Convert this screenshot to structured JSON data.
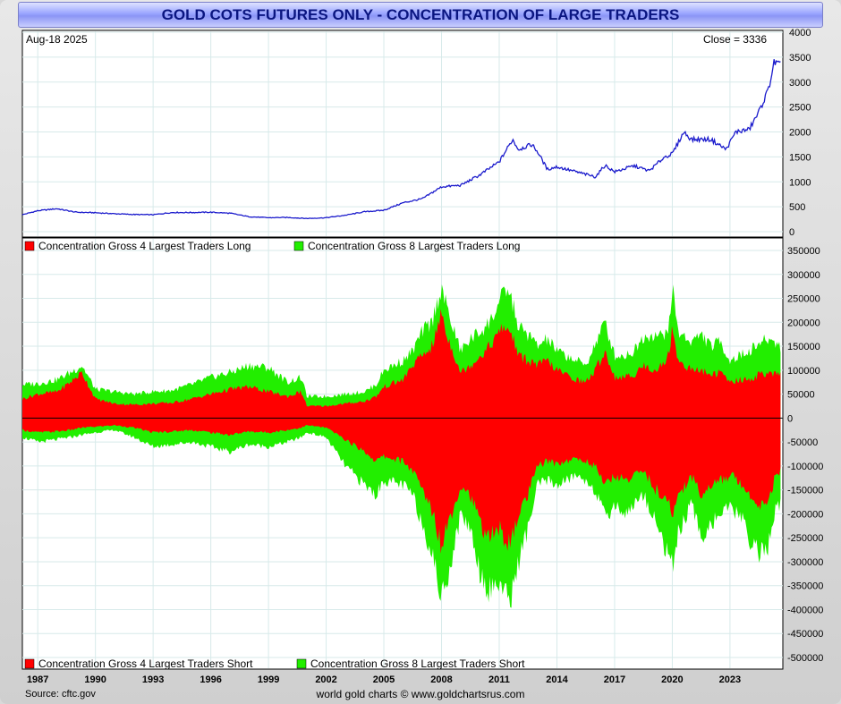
{
  "title": "GOLD COTS FUTURES ONLY - CONCENTRATION OF LARGE TRADERS",
  "date_label": "Aug-18  2025",
  "close_label": "Close = 3336",
  "source": "Source: cftc.gov",
  "credit": "world gold charts © www.goldchartsrus.com",
  "colors": {
    "price_line": "#1a1acc",
    "gross4": "#ff0000",
    "gross8": "#22ee00"
  },
  "chart_data": [
    {
      "type": "line",
      "name": "gold-price-panel",
      "x_ticks": [
        "1987",
        "1990",
        "1993",
        "1996",
        "1999",
        "2002",
        "2005",
        "2008",
        "2011",
        "2014",
        "2017",
        "2020",
        "2023"
      ],
      "y_ticks": [
        "4000",
        "3500",
        "3000",
        "2500",
        "2000",
        "1500",
        "1000",
        "500",
        "0"
      ],
      "ylim": [
        0,
        4000
      ],
      "xlim": [
        1986.2,
        2025.75
      ],
      "series": [
        {
          "values": [
            [
              1986.2,
              340
            ],
            [
              1987.0,
              420
            ],
            [
              1988.0,
              460
            ],
            [
              1989.0,
              390
            ],
            [
              1990.0,
              380
            ],
            [
              1991.0,
              360
            ],
            [
              1992.0,
              345
            ],
            [
              1993.0,
              340
            ],
            [
              1994.0,
              385
            ],
            [
              1995.0,
              385
            ],
            [
              1996.0,
              390
            ],
            [
              1997.0,
              370
            ],
            [
              1998.0,
              300
            ],
            [
              1999.0,
              280
            ],
            [
              2000.0,
              285
            ],
            [
              2001.0,
              265
            ],
            [
              2002.0,
              280
            ],
            [
              2003.0,
              330
            ],
            [
              2004.0,
              400
            ],
            [
              2005.0,
              430
            ],
            [
              2006.0,
              580
            ],
            [
              2007.0,
              660
            ],
            [
              2008.0,
              900
            ],
            [
              2009.0,
              930
            ],
            [
              2010.0,
              1140
            ],
            [
              2011.0,
              1400
            ],
            [
              2011.7,
              1850
            ],
            [
              2012.0,
              1650
            ],
            [
              2012.7,
              1750
            ],
            [
              2013.0,
              1600
            ],
            [
              2013.5,
              1250
            ],
            [
              2014.0,
              1300
            ],
            [
              2015.0,
              1200
            ],
            [
              2016.0,
              1100
            ],
            [
              2016.5,
              1330
            ],
            [
              2017.0,
              1200
            ],
            [
              2018.0,
              1320
            ],
            [
              2018.8,
              1220
            ],
            [
              2019.0,
              1290
            ],
            [
              2019.6,
              1500
            ],
            [
              2020.0,
              1560
            ],
            [
              2020.6,
              2000
            ],
            [
              2021.0,
              1850
            ],
            [
              2022.0,
              1850
            ],
            [
              2022.8,
              1650
            ],
            [
              2023.3,
              2000
            ],
            [
              2024.0,
              2050
            ],
            [
              2024.5,
              2400
            ],
            [
              2025.0,
              2850
            ],
            [
              2025.3,
              3400
            ],
            [
              2025.63,
              3336
            ]
          ]
        }
      ]
    },
    {
      "type": "area",
      "name": "concentration-panel",
      "x_ticks": [
        "1987",
        "1990",
        "1993",
        "1996",
        "1999",
        "2002",
        "2005",
        "2008",
        "2011",
        "2014",
        "2017",
        "2020",
        "2023"
      ],
      "y_ticks": [
        "350000",
        "300000",
        "250000",
        "200000",
        "150000",
        "100000",
        "50000",
        "0",
        "-50000",
        "-100000",
        "-150000",
        "-200000",
        "-250000",
        "-300000",
        "-350000",
        "-400000",
        "-450000",
        "-500000"
      ],
      "ylim": [
        -500000,
        350000
      ],
      "xlim": [
        1986.2,
        2025.75
      ],
      "legend_top": [
        "Concentration Gross 4 Largest Traders Long",
        "Concentration Gross 8 Largest Traders Long"
      ],
      "legend_bottom": [
        "Concentration Gross 4 Largest Traders Short",
        "Concentration Gross 8 Largest Traders Short"
      ],
      "x": [
        1986.2,
        1987.0,
        1988.0,
        1988.7,
        1989.3,
        1990.0,
        1991.0,
        1992.0,
        1993.0,
        1994.0,
        1995.0,
        1996.0,
        1997.0,
        1998.0,
        1999.0,
        2000.0,
        2000.7,
        2001.0,
        2002.0,
        2003.0,
        2004.0,
        2004.6,
        2005.0,
        2006.0,
        2006.5,
        2007.0,
        2007.5,
        2007.9,
        2008.0,
        2008.2,
        2008.5,
        2009.0,
        2009.5,
        2010.0,
        2010.5,
        2011.0,
        2011.4,
        2011.7,
        2012.0,
        2012.5,
        2013.0,
        2013.5,
        2014.0,
        2014.5,
        2015.0,
        2015.5,
        2016.0,
        2016.5,
        2017.0,
        2017.5,
        2018.0,
        2018.5,
        2019.0,
        2019.5,
        2019.9,
        2020.0,
        2020.3,
        2021.0,
        2021.5,
        2022.0,
        2022.5,
        2023.0,
        2023.5,
        2024.0,
        2024.5,
        2025.0,
        2025.3,
        2025.63
      ],
      "series": [
        {
          "name": "Concentration Gross 8 Largest Traders Long",
          "values": [
            70000,
            72000,
            80000,
            95000,
            110000,
            60000,
            55000,
            50000,
            55000,
            58000,
            70000,
            85000,
            95000,
            110000,
            105000,
            75000,
            85000,
            45000,
            45000,
            50000,
            55000,
            70000,
            100000,
            120000,
            140000,
            180000,
            200000,
            260000,
            275000,
            240000,
            200000,
            140000,
            165000,
            180000,
            200000,
            240000,
            270000,
            240000,
            190000,
            175000,
            150000,
            165000,
            140000,
            130000,
            120000,
            110000,
            155000,
            200000,
            130000,
            130000,
            140000,
            170000,
            175000,
            170000,
            200000,
            280000,
            180000,
            160000,
            175000,
            150000,
            160000,
            120000,
            130000,
            140000,
            155000,
            165000,
            160000,
            150000
          ]
        },
        {
          "name": "Concentration Gross 4 Largest Traders Long",
          "values": [
            40000,
            50000,
            55000,
            75000,
            95000,
            40000,
            30000,
            28000,
            30000,
            32000,
            40000,
            50000,
            60000,
            65000,
            55000,
            45000,
            55000,
            25000,
            25000,
            30000,
            35000,
            45000,
            65000,
            80000,
            110000,
            130000,
            150000,
            200000,
            230000,
            180000,
            150000,
            95000,
            110000,
            130000,
            150000,
            180000,
            190000,
            170000,
            130000,
            120000,
            110000,
            120000,
            100000,
            90000,
            80000,
            75000,
            100000,
            140000,
            85000,
            85000,
            90000,
            110000,
            100000,
            110000,
            140000,
            200000,
            120000,
            100000,
            100000,
            90000,
            95000,
            75000,
            80000,
            80000,
            90000,
            95000,
            90000,
            90000
          ]
        },
        {
          "name": "Concentration Gross 8 Largest Traders Short",
          "values": [
            -40000,
            -50000,
            -45000,
            -40000,
            -35000,
            -30000,
            -25000,
            -40000,
            -60000,
            -55000,
            -50000,
            -60000,
            -70000,
            -55000,
            -60000,
            -50000,
            -40000,
            -30000,
            -40000,
            -100000,
            -140000,
            -160000,
            -130000,
            -140000,
            -160000,
            -220000,
            -280000,
            -360000,
            -380000,
            -340000,
            -300000,
            -200000,
            -230000,
            -320000,
            -360000,
            -340000,
            -380000,
            -360000,
            -300000,
            -230000,
            -140000,
            -130000,
            -140000,
            -130000,
            -120000,
            -130000,
            -150000,
            -210000,
            -180000,
            -200000,
            -180000,
            -160000,
            -200000,
            -260000,
            -280000,
            -320000,
            -240000,
            -180000,
            -250000,
            -220000,
            -200000,
            -190000,
            -200000,
            -250000,
            -280000,
            -270000,
            -200000,
            -180000
          ]
        },
        {
          "name": "Concentration Gross 4 Largest Traders Short",
          "values": [
            -25000,
            -30000,
            -28000,
            -25000,
            -20000,
            -18000,
            -15000,
            -20000,
            -30000,
            -28000,
            -25000,
            -30000,
            -35000,
            -28000,
            -30000,
            -25000,
            -20000,
            -15000,
            -20000,
            -45000,
            -70000,
            -90000,
            -80000,
            -90000,
            -110000,
            -150000,
            -190000,
            -250000,
            -270000,
            -230000,
            -200000,
            -140000,
            -160000,
            -220000,
            -250000,
            -230000,
            -260000,
            -250000,
            -200000,
            -160000,
            -100000,
            -90000,
            -95000,
            -90000,
            -85000,
            -90000,
            -100000,
            -140000,
            -120000,
            -130000,
            -120000,
            -110000,
            -140000,
            -170000,
            -180000,
            -210000,
            -160000,
            -120000,
            -160000,
            -140000,
            -130000,
            -120000,
            -130000,
            -160000,
            -180000,
            -170000,
            -130000,
            -110000
          ]
        }
      ]
    }
  ]
}
